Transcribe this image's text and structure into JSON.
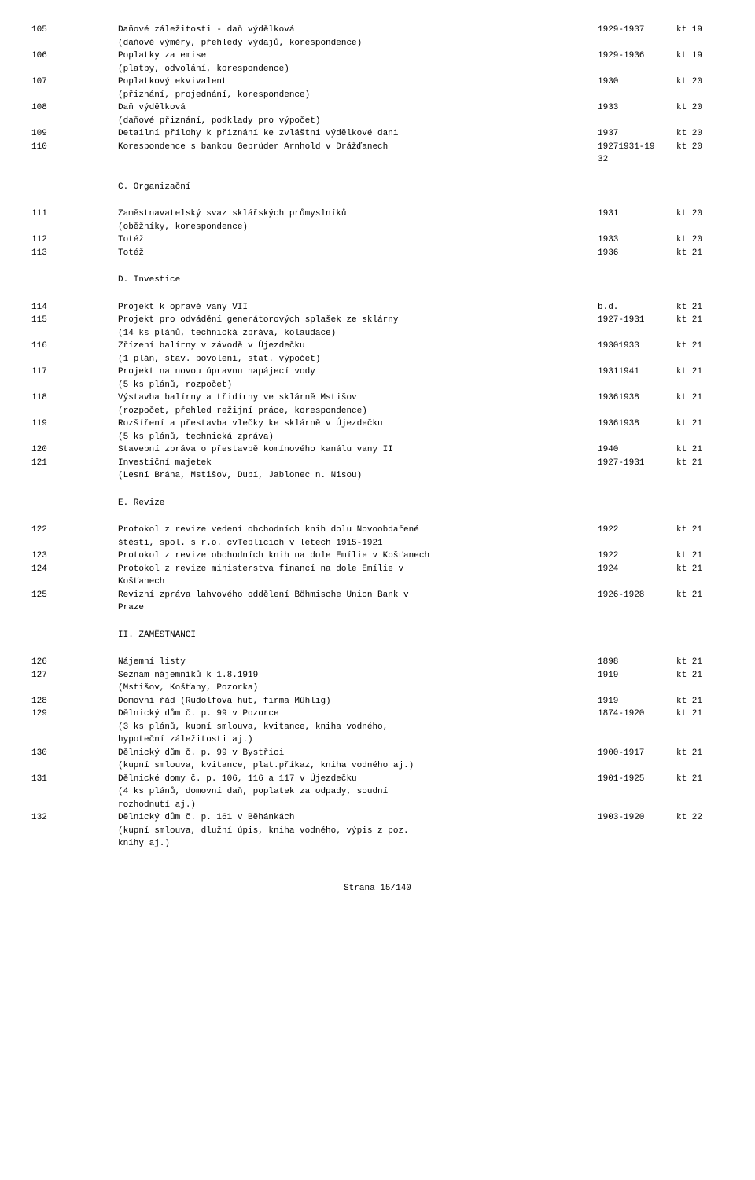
{
  "font": {
    "family": "Courier New",
    "size_pt": 11,
    "color": "#000000"
  },
  "background_color": "#ffffff",
  "footer": {
    "text": "Strana 15/140"
  },
  "sections": [
    {
      "entries": [
        {
          "id": "105",
          "lines": [
            "Daňové záležitosti - daň výdělková",
            "(daňové výměry, přehledy výdajů, korespondence)"
          ],
          "years": [
            "1929-1937"
          ],
          "kt": "kt 19"
        },
        {
          "id": "106",
          "lines": [
            "Poplatky za emise",
            "(platby, odvolání, korespondence)"
          ],
          "years": [
            "1929-1936"
          ],
          "kt": "kt 19"
        },
        {
          "id": "107",
          "lines": [
            "Poplatkový ekvivalent",
            "(přiznání, projednání, korespondence)"
          ],
          "years": [
            "1930"
          ],
          "kt": "kt 20"
        },
        {
          "id": "108",
          "lines": [
            "Daň výdělková",
            "(daňové přiznání, podklady pro výpočet)"
          ],
          "years": [
            "1933"
          ],
          "kt": "kt 20"
        },
        {
          "id": "109",
          "lines": [
            "Detailní přílohy k přiznání ke zvláštní výdělkové dani"
          ],
          "years": [
            "1937"
          ],
          "kt": "kt 20"
        },
        {
          "id": "110",
          "lines": [
            "Korespondence s bankou Gebrüder Arnhold v Drážďanech"
          ],
          "years": [
            "19271931-19",
            "32"
          ],
          "kt": "kt 20"
        }
      ]
    },
    {
      "heading": "C. Organizační",
      "entries": [
        {
          "id": "111",
          "lines": [
            "Zaměstnavatelský svaz sklářských průmyslníků",
            "(oběžníky, korespondence)"
          ],
          "years": [
            "1931"
          ],
          "kt": "kt 20"
        },
        {
          "id": "112",
          "lines": [
            "Totéž"
          ],
          "years": [
            "1933"
          ],
          "kt": "kt 20"
        },
        {
          "id": "113",
          "lines": [
            "Totéž"
          ],
          "years": [
            "1936"
          ],
          "kt": "kt 21"
        }
      ]
    },
    {
      "heading": "D. Investice",
      "entries": [
        {
          "id": "114",
          "lines": [
            "Projekt k opravě vany VII"
          ],
          "years": [
            "b.d."
          ],
          "kt": "kt 21"
        },
        {
          "id": "115",
          "lines": [
            "Projekt pro odvádění generátorových splašek ze sklárny",
            "(14 ks plánů, technická zpráva, kolaudace)"
          ],
          "years": [
            "1927-1931"
          ],
          "kt": "kt 21"
        },
        {
          "id": "116",
          "lines": [
            "Zřízení balírny v závodě v Újezdečku",
            "(1 plán, stav. povolení, stat. výpočet)"
          ],
          "years": [
            "19301933"
          ],
          "kt": "kt 21"
        },
        {
          "id": "117",
          "lines": [
            "Projekt na novou úpravnu napájecí vody",
            "(5 ks plánů, rozpočet)"
          ],
          "years": [
            "19311941"
          ],
          "kt": "kt 21"
        },
        {
          "id": "118",
          "lines": [
            "Výstavba balírny a třidírny ve sklárně Mstišov",
            "(rozpočet, přehled režijní práce, korespondence)"
          ],
          "years": [
            "19361938"
          ],
          "kt": "kt 21"
        },
        {
          "id": "119",
          "lines": [
            "Rozšíření a přestavba vlečky ke sklárně v Újezdečku",
            "(5 ks plánů, technická zpráva)"
          ],
          "years": [
            "19361938"
          ],
          "kt": "kt 21"
        },
        {
          "id": "120",
          "lines": [
            "Stavební zpráva o přestavbě komínového kanálu vany II"
          ],
          "years": [
            "1940"
          ],
          "kt": "kt 21"
        },
        {
          "id": "121",
          "lines": [
            "Investiční majetek",
            "(Lesní Brána, Mstišov, Dubí, Jablonec n. Nisou)"
          ],
          "years": [
            "1927-1931"
          ],
          "kt": "kt 21"
        }
      ]
    },
    {
      "heading": "E. Revize",
      "entries": [
        {
          "id": "122",
          "lines": [
            "Protokol z revize vedení obchodních knih dolu Novoobdařené",
            "štěstí, spol. s r.o. cvTeplicích v letech 1915-1921"
          ],
          "years": [
            "1922"
          ],
          "kt": "kt 21"
        },
        {
          "id": "123",
          "lines": [
            "Protokol z revize obchodních knih na dole Emílie v Košťanech"
          ],
          "years": [
            "1922"
          ],
          "kt": "kt 21"
        },
        {
          "id": "124",
          "lines": [
            "Protokol z revize ministerstva financí na dole Emílie v",
            "Košťanech"
          ],
          "years": [
            "1924"
          ],
          "kt": "kt 21"
        },
        {
          "id": "125",
          "lines": [
            "Revizní zpráva lahvového oddělení Böhmische Union Bank v",
            "Praze"
          ],
          "years": [
            "1926-1928"
          ],
          "kt": "kt 21"
        }
      ]
    },
    {
      "heading": "II. ZAMĚSTNANCI",
      "entries": [
        {
          "id": "126",
          "lines": [
            "Nájemní listy"
          ],
          "years": [
            "1898"
          ],
          "kt": "kt 21"
        },
        {
          "id": "127",
          "lines": [
            "Seznam nájemníků k 1.8.1919",
            "(Mstišov, Košťany, Pozorka)"
          ],
          "years": [
            "1919"
          ],
          "kt": "kt 21"
        },
        {
          "id": "128",
          "lines": [
            "Domovní řád (Rudolfova huť, firma Mühlig)"
          ],
          "years": [
            "1919"
          ],
          "kt": "kt 21"
        },
        {
          "id": "129",
          "lines": [
            "Dělnický dům č. p. 99 v Pozorce",
            "(3 ks plánů, kupní smlouva, kvitance, kniha vodného,",
            "hypoteční záležitosti aj.)"
          ],
          "years": [
            "1874-1920"
          ],
          "kt": "kt 21"
        },
        {
          "id": "130",
          "lines": [
            "Dělnický dům č. p. 99 v Bystřici",
            "(kupní smlouva, kvitance, plat.příkaz, kniha vodného aj.)"
          ],
          "years": [
            "1900-1917"
          ],
          "kt": "kt 21"
        },
        {
          "id": "131",
          "lines": [
            "Dělnické domy č. p. 106, 116 a 117 v Újezdečku",
            "(4 ks plánů, domovní daň, poplatek za odpady, soudní",
            "rozhodnutí aj.)"
          ],
          "years": [
            "1901-1925"
          ],
          "kt": "kt 21"
        },
        {
          "id": "132",
          "lines": [
            "Dělnický dům č. p. 161 v Běhánkách",
            "(kupní smlouva, dlužní úpis, kniha vodného, výpis z poz.",
            "knihy aj.)"
          ],
          "years": [
            "1903-1920"
          ],
          "kt": "kt 22"
        }
      ]
    }
  ]
}
